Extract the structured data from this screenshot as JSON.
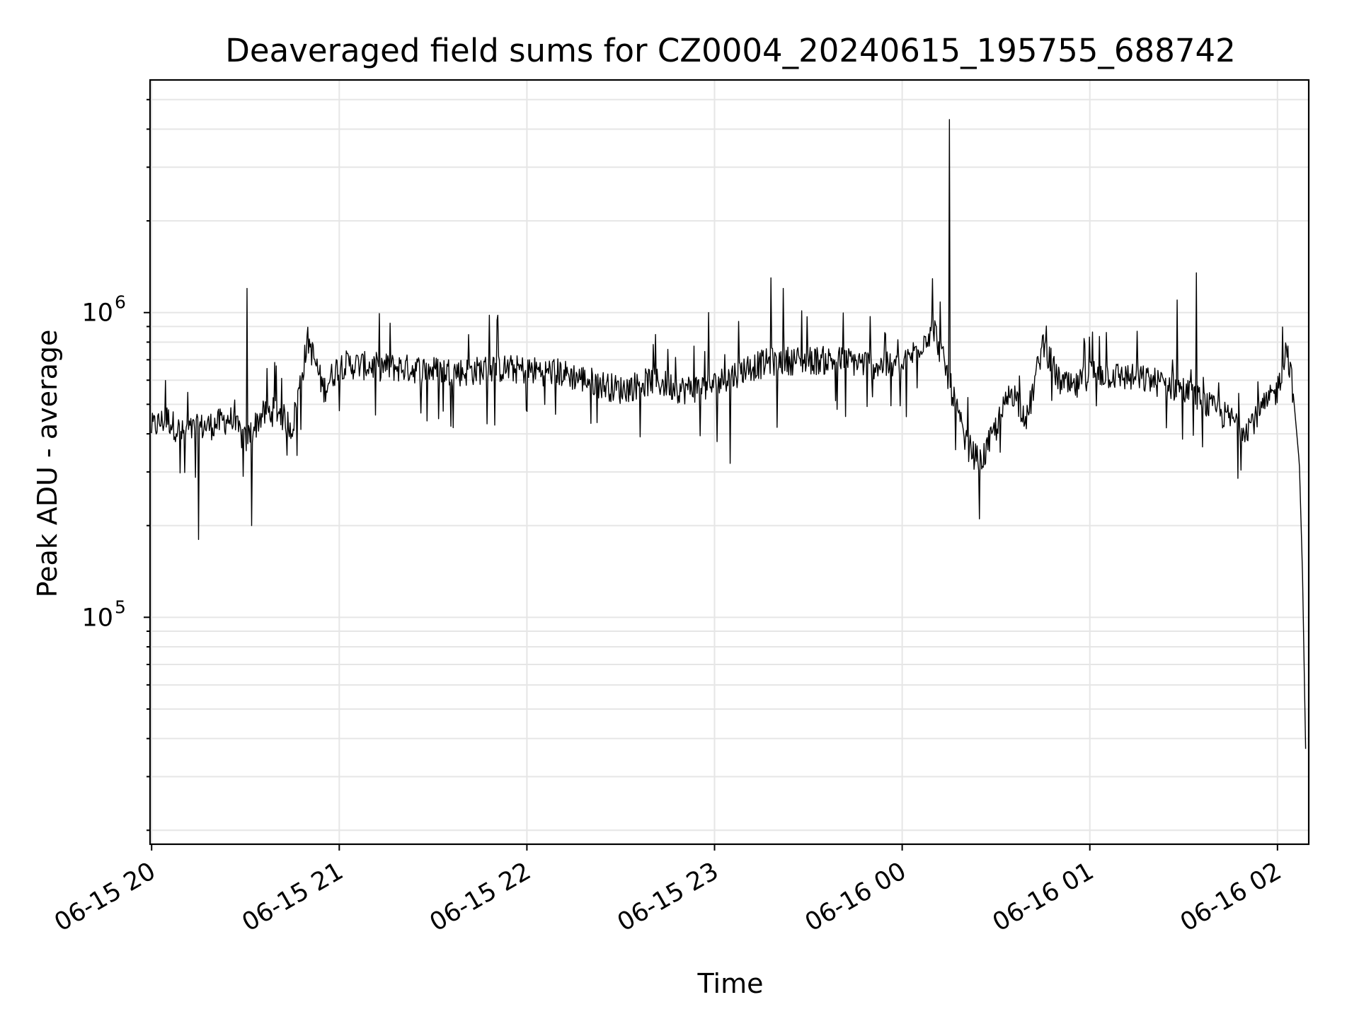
{
  "chart_data": {
    "type": "line",
    "title": "Deaveraged field sums for CZ0004_20240615_195755_688742",
    "xlabel": "Time",
    "ylabel": "Peak ADU - average",
    "xlim": [
      "2024-06-15 19:59:30",
      "2024-06-16 02:10:00"
    ],
    "ylim": [
      18000,
      5800000
    ],
    "y_scale": "log",
    "grid": true,
    "line_color": "#000000",
    "x_ticks": [
      {
        "value": "2024-06-15 20:00",
        "label": "06-15 20"
      },
      {
        "value": "2024-06-15 21:00",
        "label": "06-15 21"
      },
      {
        "value": "2024-06-15 22:00",
        "label": "06-15 22"
      },
      {
        "value": "2024-06-15 23:00",
        "label": "06-15 23"
      },
      {
        "value": "2024-06-16 00:00",
        "label": "06-16 00"
      },
      {
        "value": "2024-06-16 01:00",
        "label": "06-16 01"
      },
      {
        "value": "2024-06-16 02:00",
        "label": "06-16 02"
      }
    ],
    "y_ticks": [
      {
        "value": 100000,
        "base": "10",
        "exp": "5"
      },
      {
        "value": 1000000,
        "base": "10",
        "exp": "6"
      }
    ],
    "series": [
      {
        "x": [
          "2024-06-15 20:00",
          "2024-06-15 20:05",
          "2024-06-15 20:10",
          "2024-06-15 20:15",
          "2024-06-15 20:20",
          "2024-06-15 20:25",
          "2024-06-15 20:30",
          "2024-06-15 20:35",
          "2024-06-15 20:40",
          "2024-06-15 20:45",
          "2024-06-15 20:50",
          "2024-06-15 20:55",
          "2024-06-15 21:00",
          "2024-06-15 21:10",
          "2024-06-15 21:20",
          "2024-06-15 21:30",
          "2024-06-15 21:40",
          "2024-06-15 21:50",
          "2024-06-15 22:00",
          "2024-06-15 22:10",
          "2024-06-15 22:20",
          "2024-06-15 22:30",
          "2024-06-15 22:40",
          "2024-06-15 22:50",
          "2024-06-15 23:00",
          "2024-06-15 23:10",
          "2024-06-15 23:20",
          "2024-06-15 23:30",
          "2024-06-15 23:40",
          "2024-06-15 23:50",
          "2024-06-16 00:00",
          "2024-06-16 00:10",
          "2024-06-16 00:15",
          "2024-06-16 00:20",
          "2024-06-16 00:25",
          "2024-06-16 00:30",
          "2024-06-16 00:35",
          "2024-06-16 00:40",
          "2024-06-16 00:45",
          "2024-06-16 00:50",
          "2024-06-16 00:55",
          "2024-06-16 01:00",
          "2024-06-16 01:10",
          "2024-06-16 01:20",
          "2024-06-16 01:30",
          "2024-06-16 01:40",
          "2024-06-16 01:50",
          "2024-06-16 01:55",
          "2024-06-16 02:00",
          "2024-06-16 02:03",
          "2024-06-16 02:05",
          "2024-06-16 02:07",
          "2024-06-16 02:08",
          "2024-06-16 02:09"
        ],
        "values": [
          420000,
          450000,
          400000,
          420000,
          430000,
          450000,
          380000,
          460000,
          480000,
          420000,
          820000,
          560000,
          680000,
          670000,
          660000,
          650000,
          640000,
          660000,
          650000,
          640000,
          600000,
          560000,
          600000,
          560000,
          580000,
          660000,
          700000,
          700000,
          700000,
          680000,
          660000,
          900000,
          600000,
          380000,
          320000,
          420000,
          560000,
          450000,
          800000,
          600000,
          560000,
          640000,
          620000,
          600000,
          560000,
          480000,
          420000,
          480000,
          560000,
          780000,
          550000,
          320000,
          140000,
          37000
        ]
      }
    ],
    "spikes": [
      {
        "x": "2024-06-15 20:30:36",
        "value": 1200000
      },
      {
        "x": "2024-06-15 20:32:00",
        "value": 200000
      },
      {
        "x": "2024-06-15 20:15:00",
        "value": 180000
      },
      {
        "x": "2024-06-15 21:48:00",
        "value": 980000
      },
      {
        "x": "2024-06-15 22:58:00",
        "value": 1000000
      },
      {
        "x": "2024-06-15 23:05:00",
        "value": 320000
      },
      {
        "x": "2024-06-15 23:18:00",
        "value": 1300000
      },
      {
        "x": "2024-06-15 23:20:00",
        "value": 420000
      },
      {
        "x": "2024-06-15 23:22:00",
        "value": 1200000
      },
      {
        "x": "2024-06-16 00:15:00",
        "value": 4300000
      },
      {
        "x": "2024-06-16 01:28:00",
        "value": 1100000
      },
      {
        "x": "2024-06-16 01:34:00",
        "value": 1350000
      }
    ]
  }
}
